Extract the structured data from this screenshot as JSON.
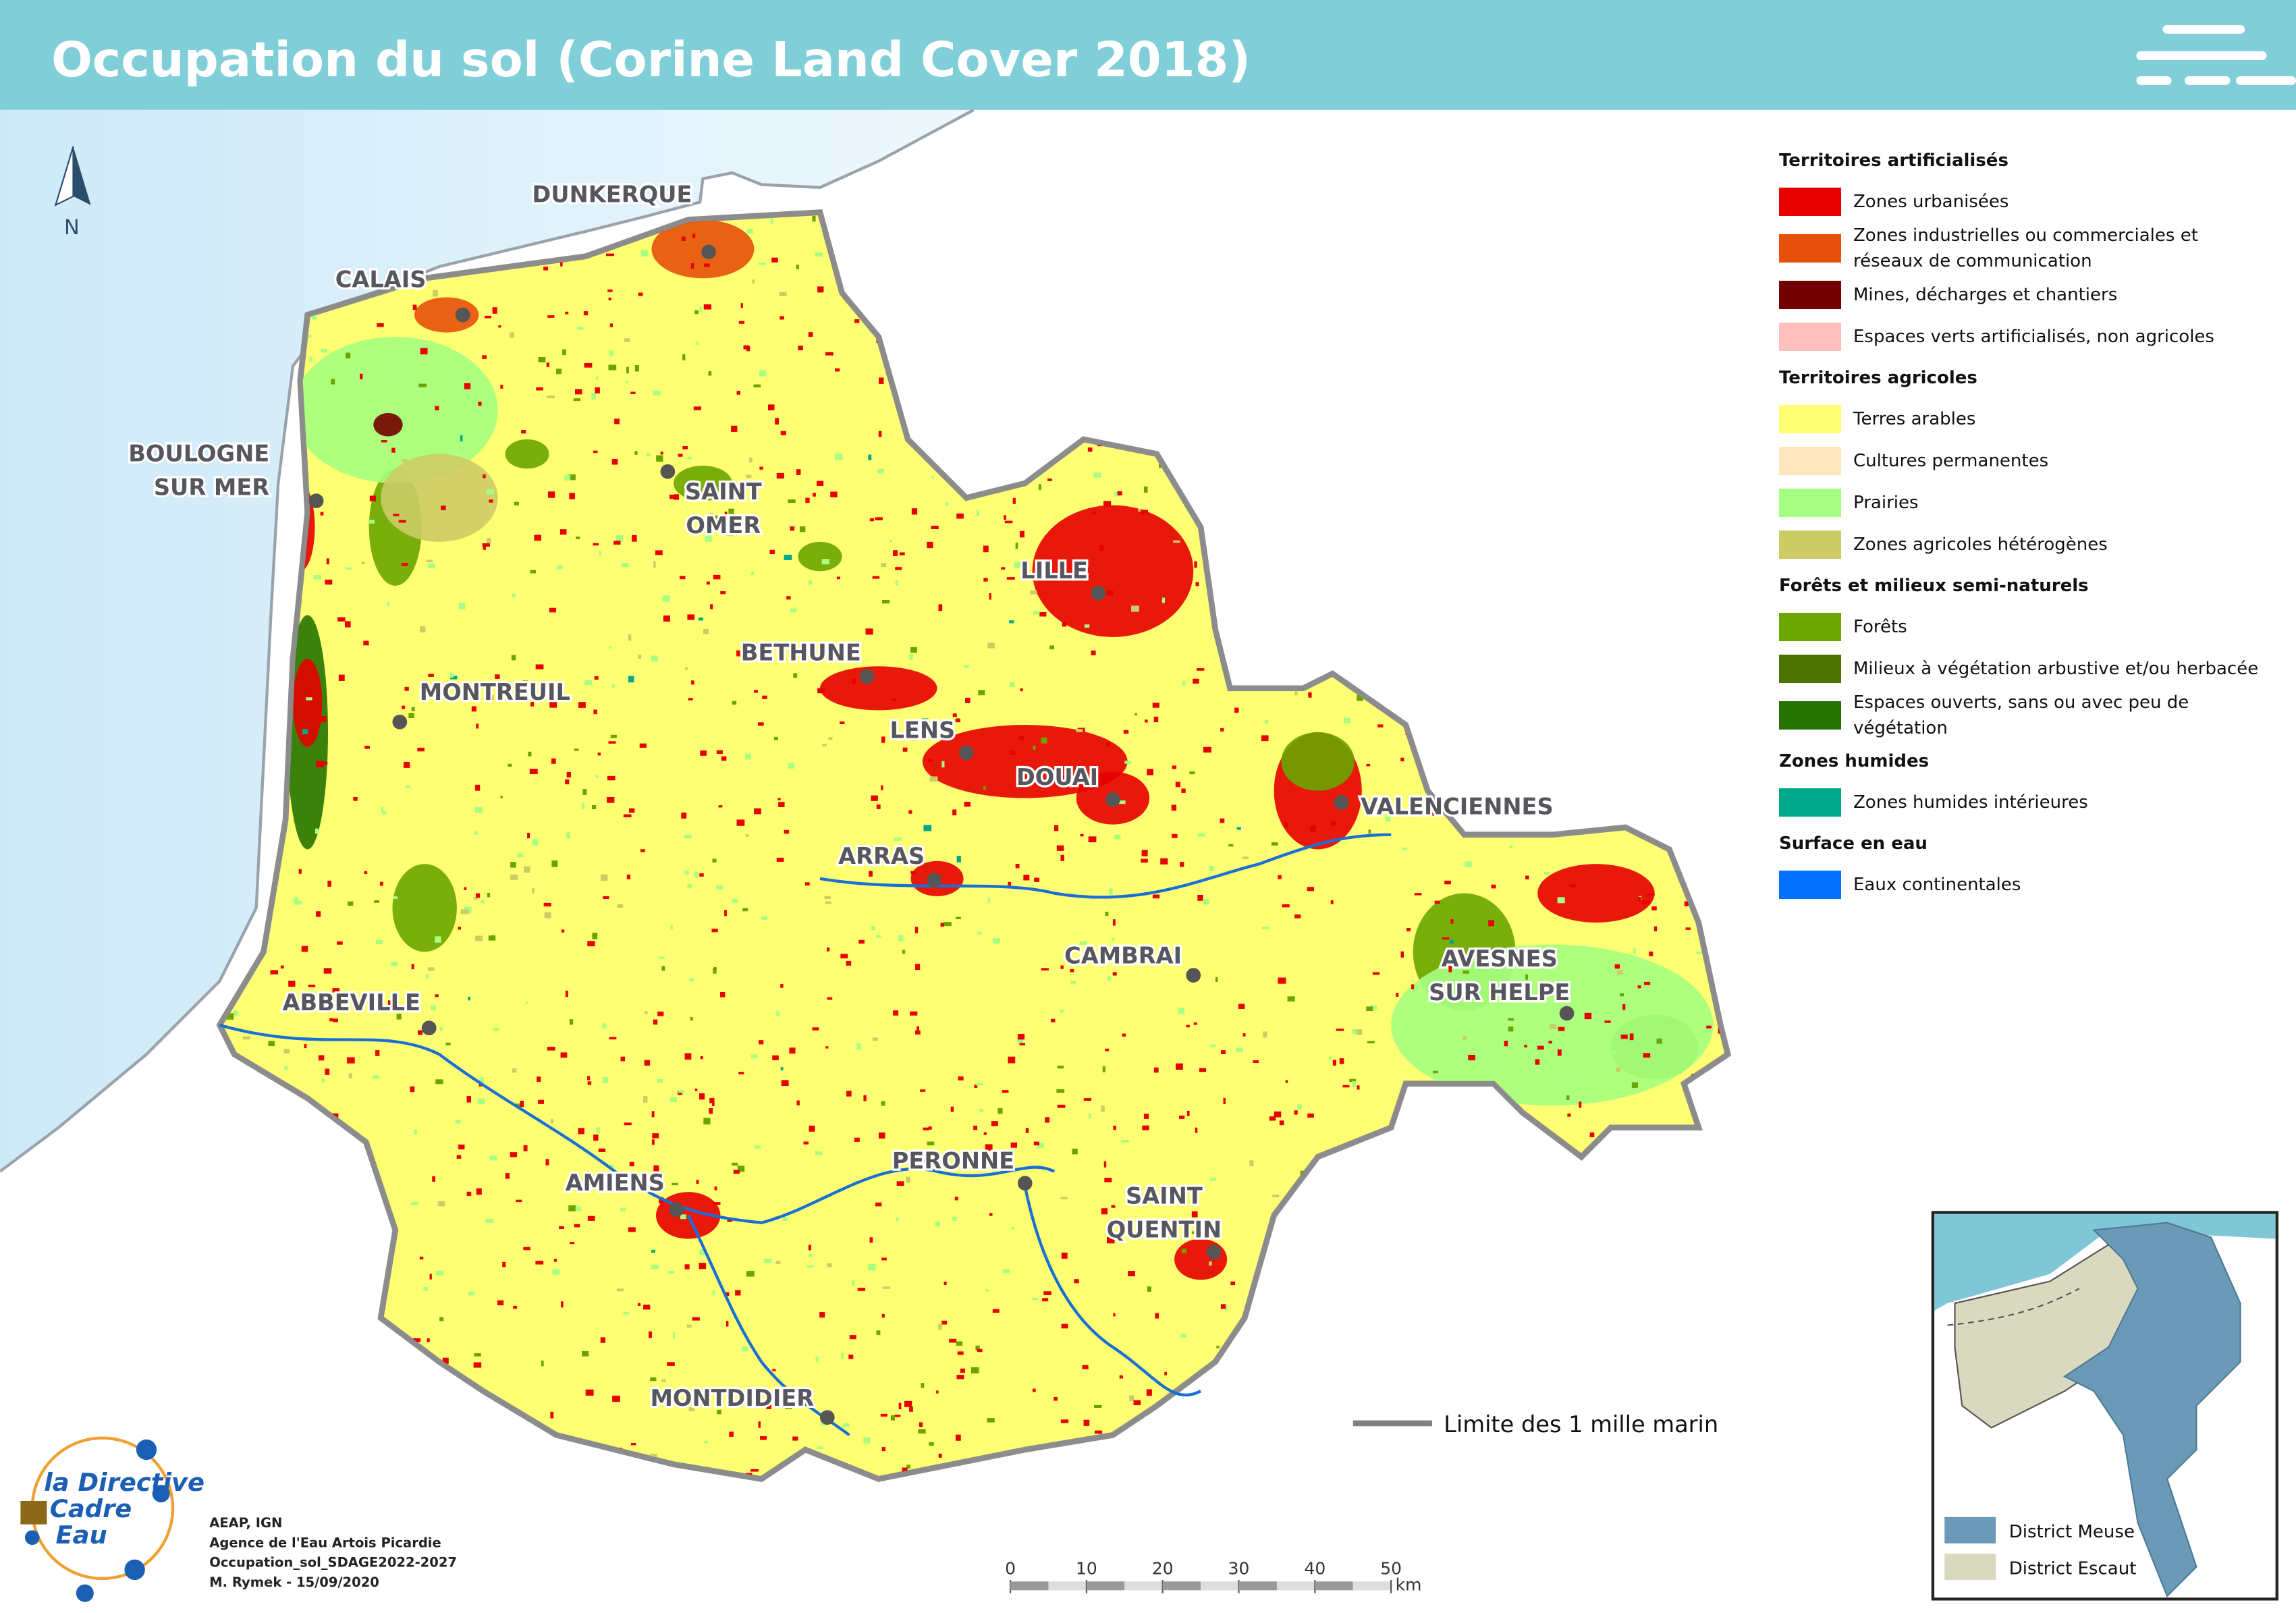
{
  "header": {
    "title": "Occupation du sol (Corine Land Cover 2018)"
  },
  "map": {
    "north": "N",
    "cities": [
      {
        "lines": [
          "DUNKERQUE"
        ]
      },
      {
        "lines": [
          "CALAIS"
        ]
      },
      {
        "lines": [
          "BOULOGNE",
          "SUR MER"
        ]
      },
      {
        "lines": [
          "SAINT",
          "OMER"
        ]
      },
      {
        "lines": [
          "LILLE"
        ]
      },
      {
        "lines": [
          "BETHUNE"
        ]
      },
      {
        "lines": [
          "MONTREUIL"
        ]
      },
      {
        "lines": [
          "LENS"
        ]
      },
      {
        "lines": [
          "DOUAI"
        ]
      },
      {
        "lines": [
          "VALENCIENNES"
        ]
      },
      {
        "lines": [
          "ARRAS"
        ]
      },
      {
        "lines": [
          "CAMBRAI"
        ]
      },
      {
        "lines": [
          "AVESNES",
          "SUR HELPE"
        ]
      },
      {
        "lines": [
          "ABBEVILLE"
        ]
      },
      {
        "lines": [
          "PERONNE"
        ]
      },
      {
        "lines": [
          "AMIENS"
        ]
      },
      {
        "lines": [
          "SAINT",
          "QUENTIN"
        ]
      },
      {
        "lines": [
          "MONTDIDIER"
        ]
      }
    ],
    "limit_label": "Limite des 1 mille marin",
    "scale": {
      "ticks": [
        0,
        10,
        20,
        30,
        40,
        50
      ],
      "unit": "km"
    }
  },
  "legend": {
    "sections": [
      {
        "title": "Territoires artificialisés",
        "items": [
          {
            "label": "Zones urbanisées",
            "color": "#e60000"
          },
          {
            "label": "Zones industrielles ou commerciales et réseaux de communication",
            "color": "#e6500a"
          },
          {
            "label": "Mines, décharges et chantiers",
            "color": "#730000"
          },
          {
            "label": "Espaces verts artificialisés, non agricoles",
            "color": "#ffbfbf"
          }
        ]
      },
      {
        "title": "Territoires agricoles",
        "items": [
          {
            "label": "Terres arables",
            "color": "#ffff73"
          },
          {
            "label": "Cultures permanentes",
            "color": "#ffe6bf"
          },
          {
            "label": "Prairies",
            "color": "#a6ff80"
          },
          {
            "label": "Zones agricoles hétérogènes",
            "color": "#cccc66"
          }
        ]
      },
      {
        "title": "Forêts et milieux semi-naturels",
        "items": [
          {
            "label": "Forêts",
            "color": "#6aa500"
          },
          {
            "label": "Milieux à végétation arbustive et/ou herbacée",
            "color": "#4d7300"
          },
          {
            "label": "Espaces ouverts, sans ou avec peu de végétation",
            "color": "#267300"
          }
        ]
      },
      {
        "title": "Zones humides",
        "items": [
          {
            "label": "Zones humides intérieures",
            "color": "#00a88a"
          }
        ]
      },
      {
        "title": "Surface en eau",
        "items": [
          {
            "label": "Eaux continentales",
            "color": "#0070ff"
          }
        ]
      }
    ]
  },
  "inset": {
    "items": [
      {
        "label": "District Meuse",
        "color": "#6b9ab8"
      },
      {
        "label": "District Escaut",
        "color": "#d9d9c0"
      }
    ]
  },
  "credits": {
    "lines": [
      "AEAP, IGN",
      "Agence de l'Eau Artois Picardie",
      "Occupation_sol_SDAGE2022-2027",
      "M. Rymek - 15/09/2020"
    ]
  },
  "logo": {
    "lines": [
      "la Directive",
      "Cadre",
      "Eau"
    ]
  }
}
